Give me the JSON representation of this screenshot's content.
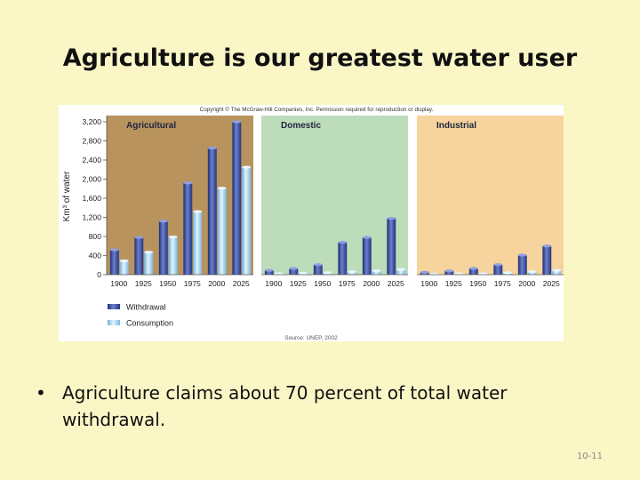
{
  "slide": {
    "title": "Agriculture is our greatest water user",
    "bullet": "Agriculture claims about 70 percent of total water withdrawal.",
    "bullet_marker": "•",
    "slide_number": "10-11"
  },
  "figure": {
    "copyright": "Copyright © The McGraw-Hill Companies, Inc. Permission required for reproduction or display.",
    "source": "Source: UNEP, 2002"
  },
  "colors": {
    "withdrawal": "#3c4fa0",
    "consumption": "#a3d4ee",
    "panel_agricultural": "#b8935e",
    "panel_domestic": "#bddcba",
    "panel_industrial": "#f7d39d"
  },
  "chart_data": {
    "type": "bar",
    "ylabel": "Km³ of water",
    "ylim": [
      0,
      3200
    ],
    "yticks": [
      "0",
      "400",
      "800",
      "1,200",
      "1,600",
      "2,000",
      "2,400",
      "2,800",
      "3,200"
    ],
    "legend": [
      "Withdrawal",
      "Consumption"
    ],
    "legend_position": "bottom-left",
    "panels": [
      {
        "name": "Agricultural",
        "categories": [
          "1900",
          "1925",
          "1950",
          "1975",
          "2000",
          "2025"
        ],
        "series": [
          {
            "name": "Withdrawal",
            "values": [
              520,
              780,
              1120,
              1920,
              2650,
              3200
            ]
          },
          {
            "name": "Consumption",
            "values": [
              290,
              470,
              790,
              1320,
              1810,
              2250
            ]
          }
        ]
      },
      {
        "name": "Domestic",
        "categories": [
          "1900",
          "1925",
          "1950",
          "1975",
          "2000",
          "2025"
        ],
        "series": [
          {
            "name": "Withdrawal",
            "values": [
              90,
              130,
              210,
              680,
              780,
              1180
            ]
          },
          {
            "name": "Consumption",
            "values": [
              20,
              30,
              40,
              60,
              80,
              110
            ]
          }
        ]
      },
      {
        "name": "Industrial",
        "categories": [
          "1900",
          "1925",
          "1950",
          "1975",
          "2000",
          "2025"
        ],
        "series": [
          {
            "name": "Withdrawal",
            "values": [
              50,
              80,
              130,
              210,
              410,
              600
            ]
          },
          {
            "name": "Consumption",
            "values": [
              10,
              20,
              20,
              40,
              60,
              90
            ]
          }
        ]
      }
    ]
  }
}
